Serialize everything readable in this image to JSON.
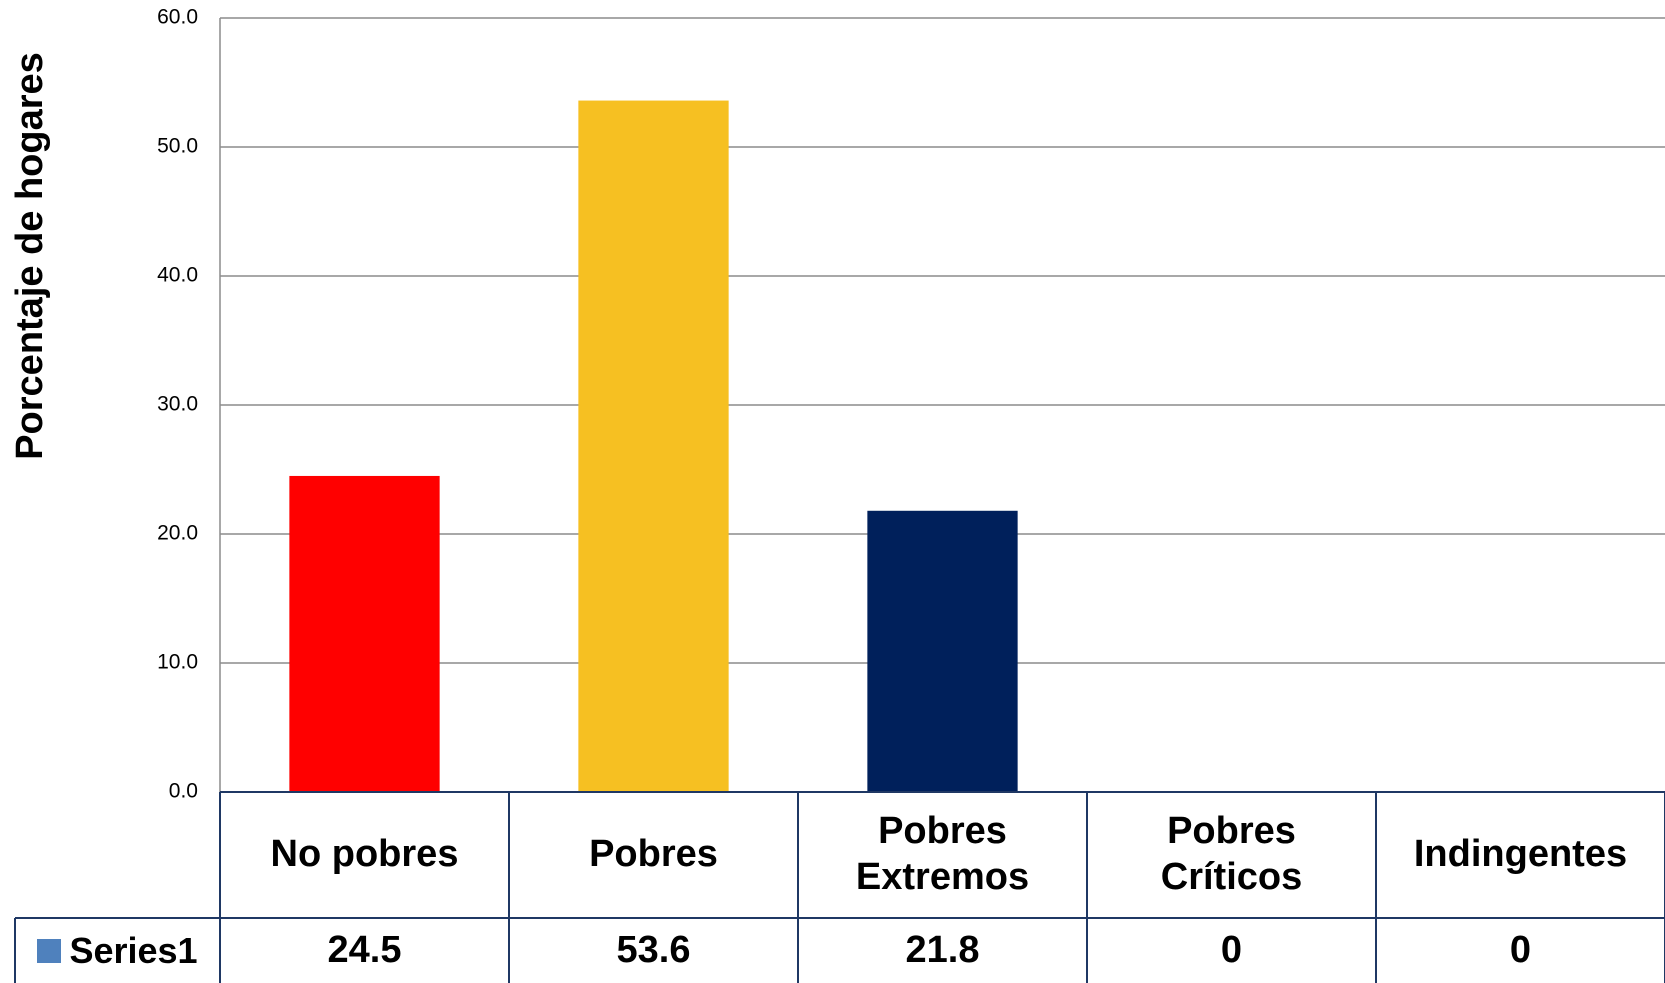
{
  "chart_data": {
    "type": "bar",
    "y_label": "Porcentaje de hogares",
    "categories": [
      "No pobres",
      "Pobres",
      "Pobres Extremos",
      "Pobres Críticos",
      "Indingentes"
    ],
    "series": [
      {
        "name": "Series1",
        "color": "#4f81bd",
        "colors": [
          "#ff0000",
          "#f6c022",
          "#00205b",
          "#7f7f7f",
          "#7f7f7f"
        ],
        "values": [
          24.5,
          53.6,
          21.8,
          0,
          0
        ]
      }
    ],
    "ylim": [
      0,
      60
    ],
    "yticks": [
      {
        "value": 0,
        "label": "0.0"
      },
      {
        "value": 10,
        "label": "10.0"
      },
      {
        "value": 20,
        "label": "20.0"
      },
      {
        "value": 30,
        "label": "30.0"
      },
      {
        "value": 40,
        "label": "40.0"
      },
      {
        "value": 50,
        "label": "50.0"
      },
      {
        "value": 60,
        "label": "60.0"
      }
    ],
    "grid": true,
    "legend": "data-table"
  }
}
